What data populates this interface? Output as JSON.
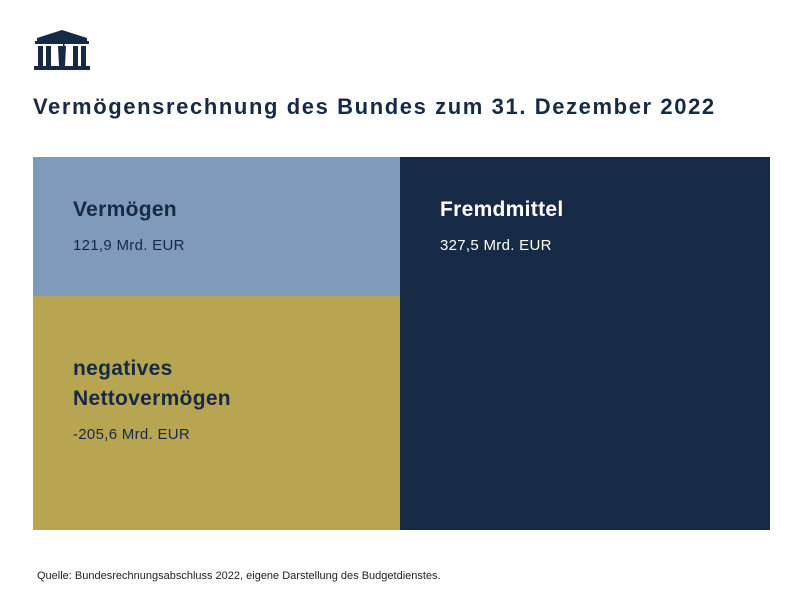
{
  "logo": {
    "icon": "parliament-building-icon",
    "color": "#162a45"
  },
  "title": "Vermögensrechnung des Bundes zum 31. Dezember 2022",
  "chart_data": {
    "type": "bar",
    "title": "Vermögensrechnung des Bundes zum 31. Dezember 2022",
    "unit": "Mrd. EUR",
    "columns": [
      {
        "segments": [
          {
            "name": "Vermögen",
            "value": 121.9,
            "value_label": "121,9 Mrd. EUR",
            "color": "#7f9aba",
            "text_color": "#162a45"
          },
          {
            "name": "negatives Nettovermögen",
            "value": -205.6,
            "value_label": "-205,6 Mrd. EUR",
            "color": "#b8a552",
            "text_color": "#162a45"
          }
        ]
      },
      {
        "segments": [
          {
            "name": "Fremdmittel",
            "value": 327.5,
            "value_label": "327,5 Mrd. EUR",
            "color": "#162a45",
            "text_color": "#ffffff"
          }
        ]
      }
    ]
  },
  "source": "Quelle: Bundesrechnungsabschluss 2022, eigene Darstellung des Budgetdienstes."
}
